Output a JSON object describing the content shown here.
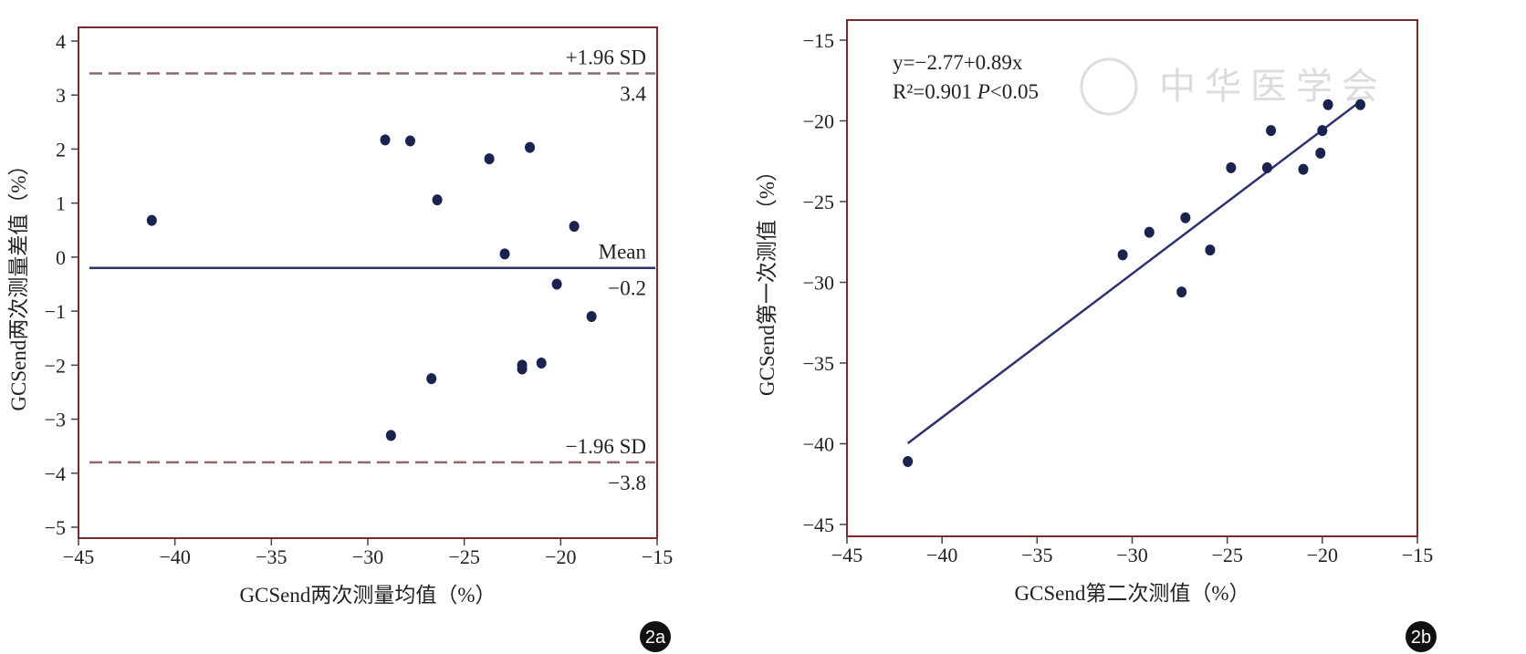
{
  "chart_data": [
    {
      "id": "2a",
      "type": "scatter",
      "badge": "2a",
      "xlabel": "GCSend两次测量均值（%）",
      "ylabel": "GCSend两次测量差值（%）",
      "xlim": [
        -45,
        -15
      ],
      "ylim": [
        -5,
        4
      ],
      "xticks": [
        -45,
        -40,
        -35,
        -30,
        -25,
        -20,
        -15
      ],
      "yticks": [
        4,
        3,
        2,
        1,
        0,
        -1,
        -2,
        -3,
        -4,
        -5
      ],
      "x": [
        -41.2,
        -29.1,
        -27.8,
        -26.4,
        -23.7,
        -21.6,
        -22.9,
        -19.3,
        -20.2,
        -18.4,
        -22.0,
        -22.0,
        -21.0,
        -26.7,
        -28.8
      ],
      "y": [
        0.68,
        2.17,
        2.15,
        1.06,
        1.82,
        2.03,
        0.06,
        0.57,
        -0.5,
        -1.1,
        -2.0,
        -2.07,
        -1.96,
        -2.25,
        -3.3
      ],
      "lines": [
        {
          "label": "+1.96 SD",
          "value_label": "3.4",
          "value": 3.4,
          "style": "dashed"
        },
        {
          "label": "Mean",
          "value_label": "−0.2",
          "value": -0.2,
          "style": "solid"
        },
        {
          "label": "−1.96 SD",
          "value_label": "−3.8",
          "value": -3.8,
          "style": "dashed"
        }
      ]
    },
    {
      "id": "2b",
      "type": "scatter",
      "badge": "2b",
      "xlabel": "GCSend第二次测值（%）",
      "ylabel": "GCSend第一次测值（%）",
      "xlim": [
        -45,
        -15
      ],
      "ylim": [
        -45,
        -15
      ],
      "xticks": [
        -45,
        -40,
        -35,
        -30,
        -25,
        -20,
        -15
      ],
      "yticks": [
        -15,
        -20,
        -25,
        -30,
        -35,
        -40,
        -45
      ],
      "x": [
        -41.8,
        -30.5,
        -29.1,
        -27.2,
        -27.4,
        -25.9,
        -24.8,
        -22.9,
        -22.7,
        -21.0,
        -20.1,
        -20.0,
        -19.7,
        -18.0
      ],
      "y": [
        -41.1,
        -28.3,
        -26.9,
        -26.0,
        -30.6,
        -28.0,
        -22.9,
        -22.9,
        -20.6,
        -23.0,
        -22.0,
        -20.6,
        -19.0,
        -19.0
      ],
      "regression": {
        "intercept": -2.77,
        "slope": 0.89,
        "x_range": [
          -41.8,
          -18.0
        ]
      },
      "annotation_eq": "y=−2.77+0.89x",
      "annotation_r2": "R²=0.901 ",
      "annotation_p": "P",
      "annotation_p2": "<0.05",
      "watermark": "中华医学会"
    }
  ],
  "colors": {
    "frame": "#7a2a2a",
    "points": "#1a2350",
    "line": "#2e3370",
    "dash": "#8a6a6a"
  }
}
